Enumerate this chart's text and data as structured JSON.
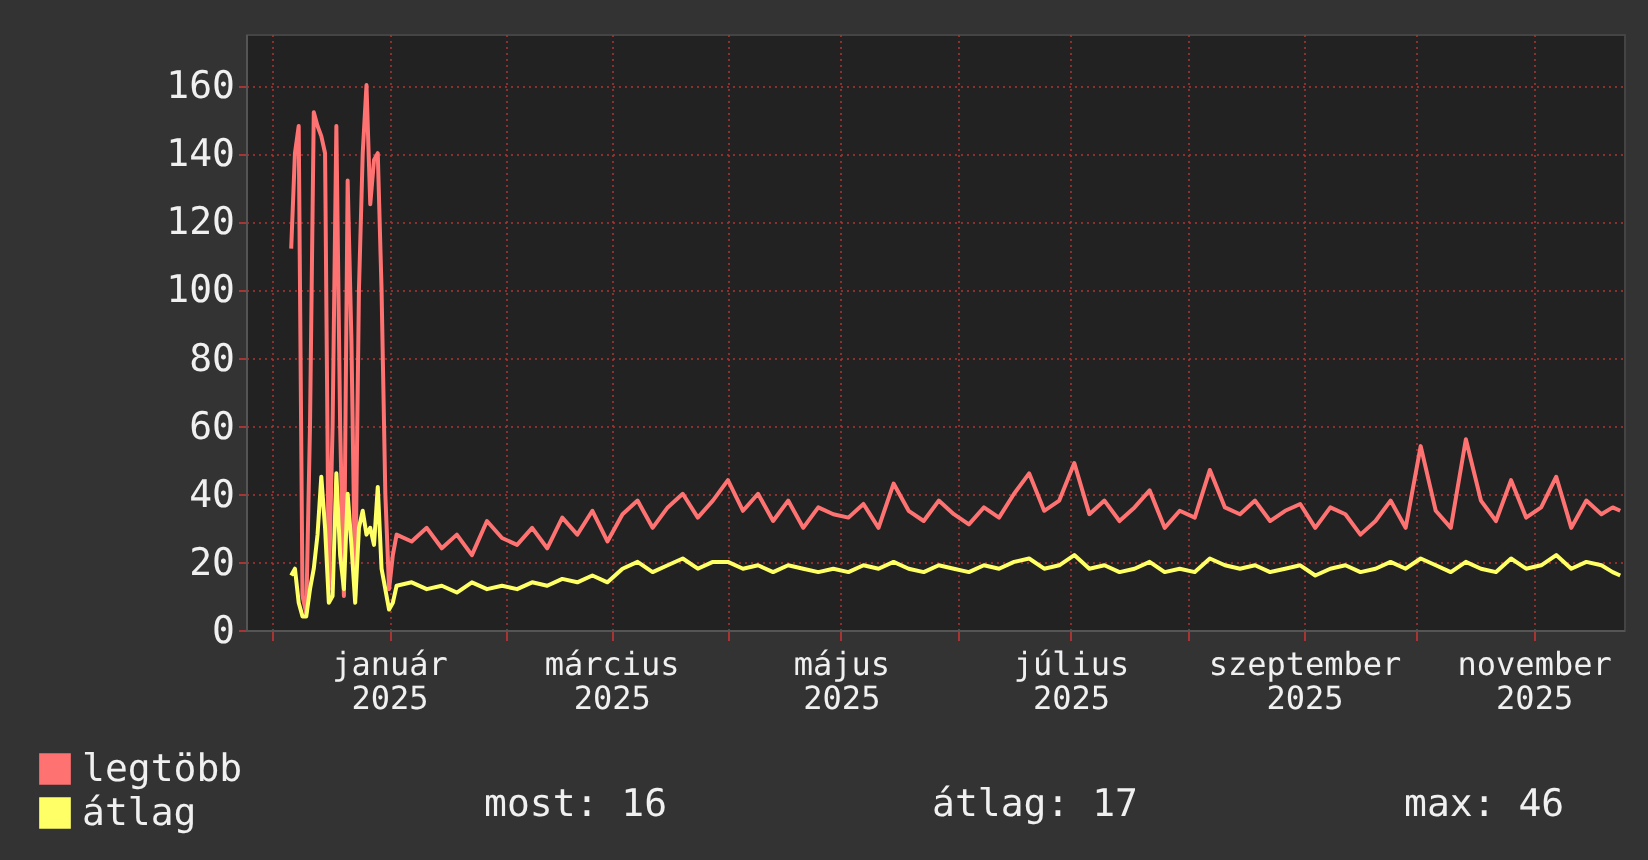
{
  "chart_data": {
    "type": "line",
    "x": [
      "2024-12-06",
      "2024-12-07",
      "2024-12-08",
      "2024-12-09",
      "2024-12-10",
      "2024-12-11",
      "2024-12-12",
      "2024-12-13",
      "2024-12-14",
      "2024-12-15",
      "2024-12-16",
      "2024-12-17",
      "2024-12-18",
      "2024-12-19",
      "2024-12-20",
      "2024-12-21",
      "2024-12-22",
      "2024-12-23",
      "2024-12-24",
      "2024-12-25",
      "2024-12-26",
      "2024-12-27",
      "2024-12-28",
      "2024-12-29",
      "2024-12-30",
      "2024-12-31",
      "2025-01-01",
      "2025-01-02",
      "2025-01-03",
      "2025-01-07",
      "2025-01-11",
      "2025-01-15",
      "2025-01-19",
      "2025-01-23",
      "2025-01-27",
      "2025-01-31",
      "2025-02-04",
      "2025-02-08",
      "2025-02-12",
      "2025-02-16",
      "2025-02-20",
      "2025-02-24",
      "2025-02-28",
      "2025-03-04",
      "2025-03-08",
      "2025-03-12",
      "2025-03-16",
      "2025-03-20",
      "2025-03-24",
      "2025-03-28",
      "2025-04-01",
      "2025-04-05",
      "2025-04-09",
      "2025-04-13",
      "2025-04-17",
      "2025-04-21",
      "2025-04-25",
      "2025-04-29",
      "2025-05-03",
      "2025-05-07",
      "2025-05-11",
      "2025-05-15",
      "2025-05-19",
      "2025-05-23",
      "2025-05-27",
      "2025-05-31",
      "2025-06-04",
      "2025-06-08",
      "2025-06-12",
      "2025-06-16",
      "2025-06-20",
      "2025-06-24",
      "2025-06-28",
      "2025-07-02",
      "2025-07-06",
      "2025-07-10",
      "2025-07-14",
      "2025-07-18",
      "2025-07-22",
      "2025-07-26",
      "2025-07-30",
      "2025-08-03",
      "2025-08-07",
      "2025-08-11",
      "2025-08-15",
      "2025-08-19",
      "2025-08-23",
      "2025-08-27",
      "2025-08-31",
      "2025-09-04",
      "2025-09-08",
      "2025-09-12",
      "2025-09-16",
      "2025-09-20",
      "2025-09-24",
      "2025-09-28",
      "2025-10-02",
      "2025-10-06",
      "2025-10-10",
      "2025-10-14",
      "2025-10-18",
      "2025-10-22",
      "2025-10-26",
      "2025-10-30",
      "2025-11-03",
      "2025-11-07",
      "2025-11-11",
      "2025-11-15",
      "2025-11-19",
      "2025-11-22",
      "2025-11-24"
    ],
    "series": [
      {
        "name": "legtöbb",
        "color": "#ff7272",
        "values": [
          112,
          140,
          148,
          10,
          5,
          60,
          152,
          148,
          145,
          140,
          12,
          60,
          148,
          60,
          10,
          132,
          85,
          10,
          100,
          140,
          160,
          125,
          138,
          140,
          100,
          40,
          12,
          22,
          28,
          26,
          30,
          24,
          28,
          22,
          32,
          27,
          25,
          30,
          24,
          33,
          28,
          35,
          26,
          34,
          38,
          30,
          36,
          40,
          33,
          38,
          44,
          35,
          40,
          32,
          38,
          30,
          36,
          34,
          33,
          37,
          30,
          43,
          35,
          32,
          38,
          34,
          31,
          36,
          33,
          40,
          46,
          35,
          38,
          49,
          34,
          38,
          32,
          36,
          41,
          30,
          35,
          33,
          47,
          36,
          34,
          38,
          32,
          35,
          37,
          30,
          36,
          34,
          28,
          32,
          38,
          30,
          54,
          35,
          30,
          56,
          38,
          32,
          44,
          33,
          36,
          45,
          30,
          38,
          34,
          36,
          35
        ]
      },
      {
        "name": "átlag",
        "color": "#ffff66",
        "values": [
          16,
          18,
          8,
          4,
          4,
          12,
          18,
          28,
          45,
          30,
          8,
          10,
          46,
          22,
          12,
          40,
          25,
          8,
          30,
          35,
          28,
          30,
          25,
          42,
          18,
          12,
          6,
          8,
          13,
          14,
          12,
          13,
          11,
          14,
          12,
          13,
          12,
          14,
          13,
          15,
          14,
          16,
          14,
          18,
          20,
          17,
          19,
          21,
          18,
          20,
          20,
          18,
          19,
          17,
          19,
          18,
          17,
          18,
          17,
          19,
          18,
          20,
          18,
          17,
          19,
          18,
          17,
          19,
          18,
          20,
          21,
          18,
          19,
          22,
          18,
          19,
          17,
          18,
          20,
          17,
          18,
          17,
          21,
          19,
          18,
          19,
          17,
          18,
          19,
          16,
          18,
          19,
          17,
          18,
          20,
          18,
          21,
          19,
          17,
          20,
          18,
          17,
          21,
          18,
          19,
          22,
          18,
          20,
          19,
          17,
          16
        ]
      }
    ],
    "xlim": [
      "2024-11-24",
      "2025-11-25"
    ],
    "xticks": [
      {
        "value": "2024-12-01",
        "label": null
      },
      {
        "value": "2025-01-01",
        "label": "január 2025"
      },
      {
        "value": "2025-02-01",
        "label": null
      },
      {
        "value": "2025-03-01",
        "label": "március 2025"
      },
      {
        "value": "2025-04-01",
        "label": null
      },
      {
        "value": "2025-05-01",
        "label": "május 2025"
      },
      {
        "value": "2025-06-01",
        "label": null
      },
      {
        "value": "2025-07-01",
        "label": "július 2025"
      },
      {
        "value": "2025-08-01",
        "label": null
      },
      {
        "value": "2025-09-01",
        "label": "szeptember 2025"
      },
      {
        "value": "2025-10-01",
        "label": null
      },
      {
        "value": "2025-11-01",
        "label": "november 2025"
      }
    ],
    "ylim": [
      0,
      175
    ],
    "yticks": [
      0,
      20,
      40,
      60,
      80,
      100,
      120,
      140,
      160
    ],
    "grid": true,
    "legend": "bottom",
    "annotations": [
      "most: 16",
      "átlag: 17",
      "max: 46"
    ]
  }
}
